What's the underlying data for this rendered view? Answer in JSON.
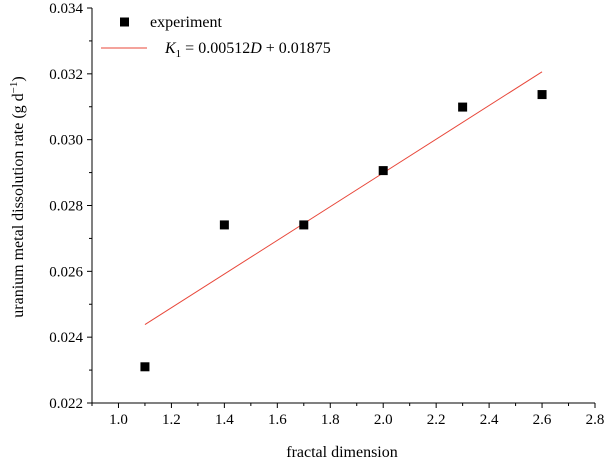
{
  "chart_data": {
    "type": "scatter",
    "xlabel": "fractal dimension",
    "ylabel": "uranium metal dissolution rate (g d",
    "ylabel_sup": "−1",
    "ylabel_close": ")",
    "xlim": [
      0.9,
      2.8
    ],
    "ylim": [
      0.022,
      0.034
    ],
    "x_ticks": [
      "1.0",
      "1.2",
      "1.4",
      "1.6",
      "1.8",
      "2.0",
      "2.2",
      "2.4",
      "2.6",
      "2.8"
    ],
    "y_ticks": [
      "0.022",
      "0.024",
      "0.026",
      "0.028",
      "0.030",
      "0.032",
      "0.034"
    ],
    "grid": false,
    "legend_position": "top-left",
    "series": [
      {
        "name": "experiment",
        "kind": "points",
        "marker": "square",
        "color": "#000000",
        "x": [
          1.1,
          1.4,
          1.7,
          2.0,
          2.3,
          2.6
        ],
        "y": [
          0.0231,
          0.02741,
          0.02741,
          0.02906,
          0.03099,
          0.03137
        ]
      },
      {
        "name_var": "K",
        "name_sub": "1",
        "name_rest": " = 0.00512",
        "name_var2": "D",
        "name_tail": " + 0.01875",
        "kind": "line",
        "color": "#e8473a",
        "slope": 0.00512,
        "intercept": 0.01875,
        "x_range": [
          1.1,
          2.6
        ]
      }
    ]
  }
}
